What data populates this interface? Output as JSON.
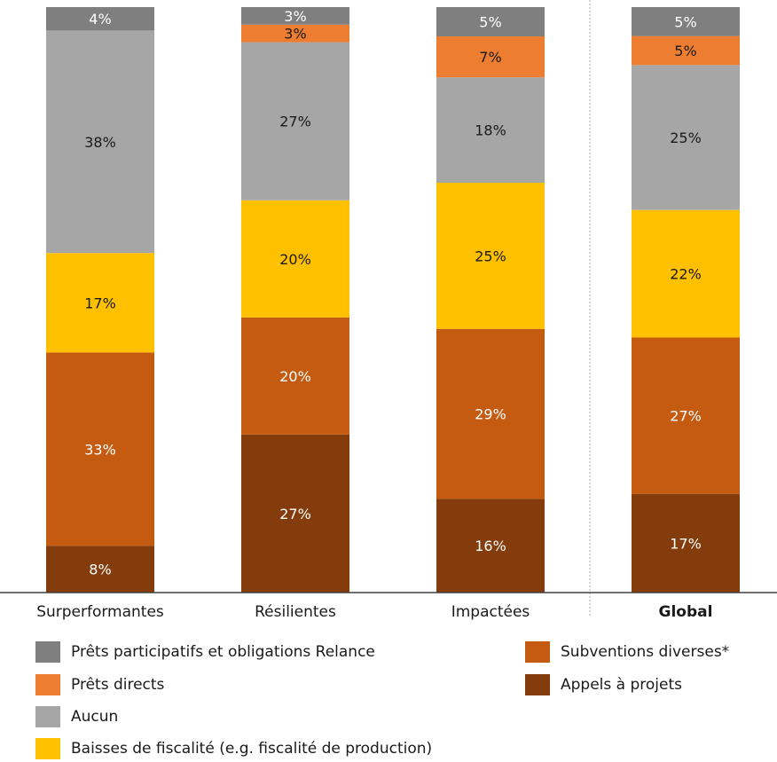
{
  "chart_data": {
    "type": "bar",
    "stacked": true,
    "categories": [
      "Surperformantes",
      "Résilientes",
      "Impactées",
      "Global"
    ],
    "emphasized_category": "Global",
    "ylim": [
      0,
      100
    ],
    "grid": false,
    "series": [
      {
        "name": "Appels à projets",
        "color": "#843C0C",
        "label_color": "#ffffff",
        "values": [
          8,
          27,
          16,
          17
        ],
        "labels": [
          "8%",
          "27%",
          "16%",
          "17%"
        ]
      },
      {
        "name": "Subventions diverses*",
        "color": "#C55A11",
        "label_color": "#ffffff",
        "values": [
          33,
          20,
          29,
          27
        ],
        "labels": [
          "33%",
          "20%",
          "29%",
          "27%"
        ]
      },
      {
        "name": "Baisses de fiscalité (e.g. fiscalité de production)",
        "color": "#FFC000",
        "label_color": "#1a1a1a",
        "values": [
          17,
          20,
          25,
          22
        ],
        "labels": [
          "17%",
          "20%",
          "25%",
          "22%"
        ]
      },
      {
        "name": "Aucun",
        "color": "#A6A6A6",
        "label_color": "#1a1a1a",
        "values": [
          38,
          27,
          18,
          25
        ],
        "labels": [
          "38%",
          "27%",
          "18%",
          "25%"
        ]
      },
      {
        "name": "Prêts directs",
        "color": "#ED7D31",
        "label_color": "#1a1a1a",
        "values": [
          0,
          3,
          7,
          5
        ],
        "labels": [
          "",
          "3%",
          "7%",
          "5%"
        ]
      },
      {
        "name": "Prêts participatifs et obligations Relance",
        "color": "#7F7F7F",
        "label_color": "#ffffff",
        "values": [
          4,
          3,
          5,
          5
        ],
        "labels": [
          "4%",
          "3%",
          "5%",
          "5%"
        ]
      }
    ],
    "legend_position": "bottom",
    "legend_order": [
      "Prêts participatifs et obligations Relance",
      "Subventions diverses*",
      "Prêts directs",
      "Appels à projets",
      "Aucun",
      "Baisses de fiscalité (e.g. fiscalité de production)"
    ]
  }
}
